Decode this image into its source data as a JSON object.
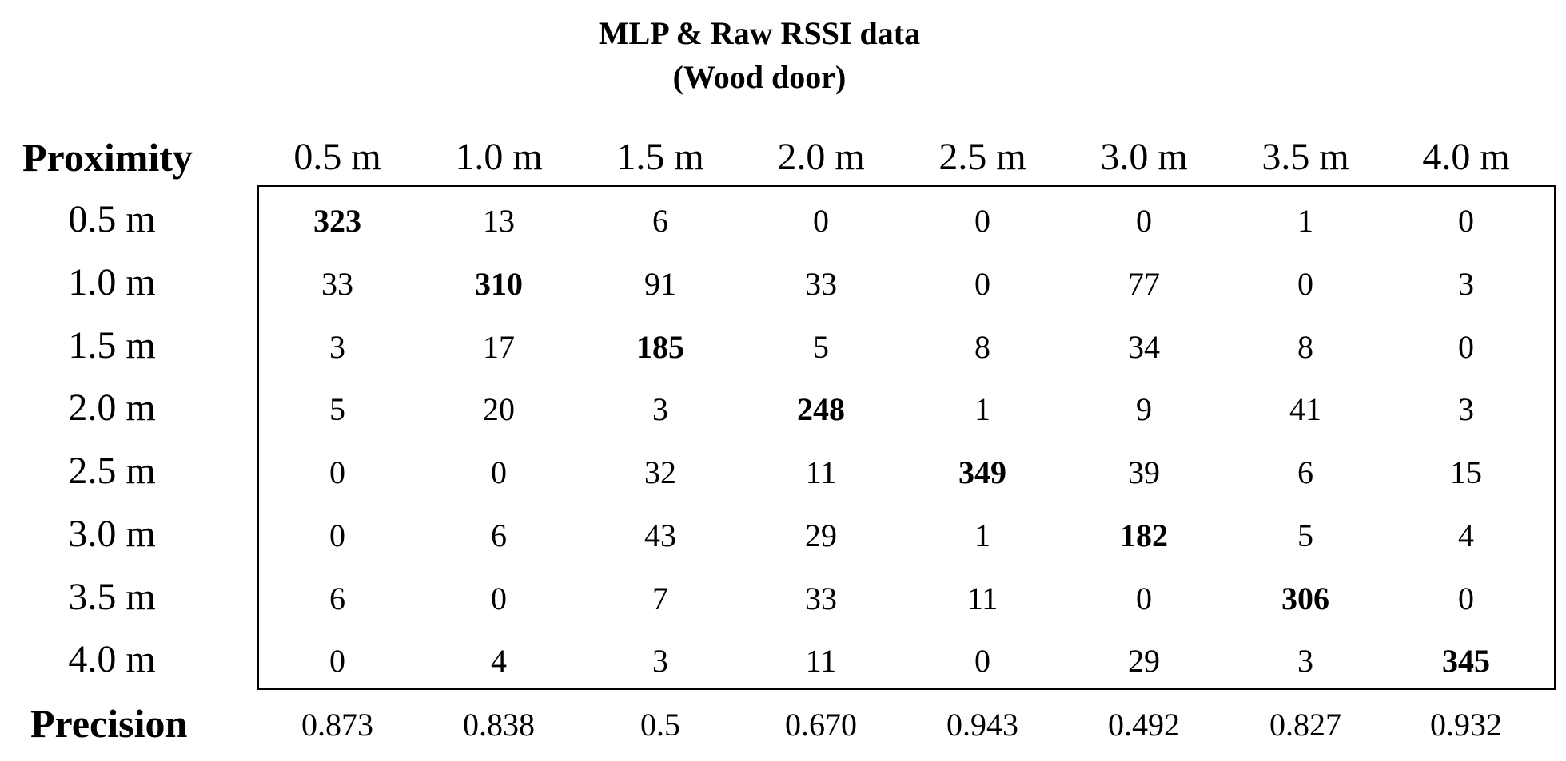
{
  "chart_data": {
    "type": "table",
    "title": "MLP & Raw RSSI data",
    "subtitle": "(Wood door)",
    "row_header": "Proximity",
    "columns": [
      "0.5 m",
      "1.0 m",
      "1.5 m",
      "2.0 m",
      "2.5 m",
      "3.0 m",
      "3.5 m",
      "4.0 m"
    ],
    "rows": [
      {
        "label": "0.5 m",
        "values": [
          323,
          13,
          6,
          0,
          0,
          0,
          1,
          0
        ]
      },
      {
        "label": "1.0 m",
        "values": [
          33,
          310,
          91,
          33,
          0,
          77,
          0,
          3
        ]
      },
      {
        "label": "1.5 m",
        "values": [
          3,
          17,
          185,
          5,
          8,
          34,
          8,
          0
        ]
      },
      {
        "label": "2.0 m",
        "values": [
          5,
          20,
          3,
          248,
          1,
          9,
          41,
          3
        ]
      },
      {
        "label": "2.5 m",
        "values": [
          0,
          0,
          32,
          11,
          349,
          39,
          6,
          15
        ]
      },
      {
        "label": "3.0 m",
        "values": [
          0,
          6,
          43,
          29,
          1,
          182,
          5,
          4
        ]
      },
      {
        "label": "3.5 m",
        "values": [
          6,
          0,
          7,
          33,
          11,
          0,
          306,
          0
        ]
      },
      {
        "label": "4.0 m",
        "values": [
          0,
          4,
          3,
          11,
          0,
          29,
          3,
          345
        ]
      }
    ],
    "precision_label": "Precision",
    "precision": [
      "0.873",
      "0.838",
      "0.5",
      "0.670",
      "0.943",
      "0.492",
      "0.827",
      "0.932"
    ],
    "bold_diagonal": true,
    "border_color": "#000000"
  }
}
